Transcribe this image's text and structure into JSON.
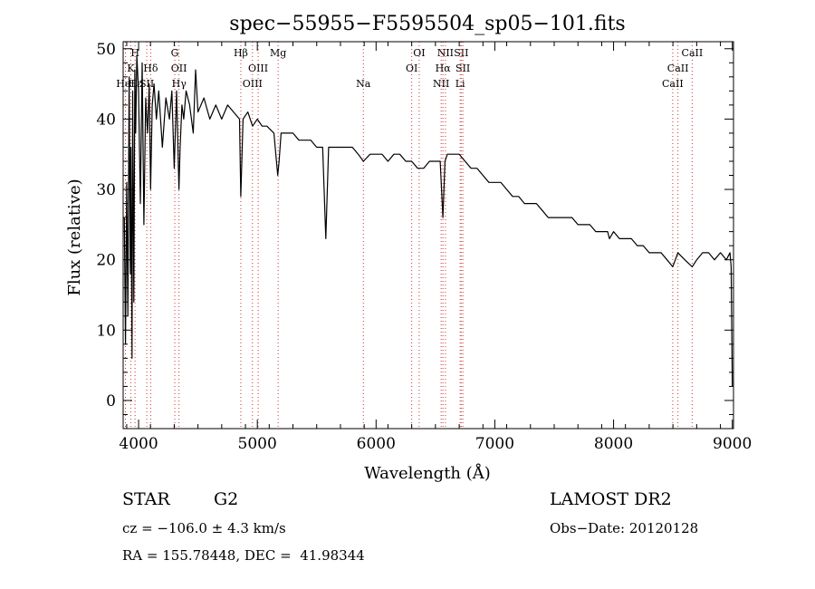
{
  "chart_data": {
    "type": "line",
    "title": "spec−55955−F5595504_sp05−101.fits",
    "xlabel": "Wavelength (Å)",
    "ylabel": "Flux (relative)",
    "xlim": [
      3870,
      9010
    ],
    "ylim": [
      -4,
      51
    ],
    "xticks": [
      4000,
      5000,
      6000,
      7000,
      8000,
      9000
    ],
    "xtick_labels": [
      "4000",
      "5000",
      "6000",
      "7000",
      "8000",
      "9000"
    ],
    "yticks": [
      0,
      10,
      20,
      30,
      40,
      50
    ],
    "ytick_labels": [
      "0",
      "10",
      "20",
      "30",
      "40",
      "50"
    ],
    "grid": false,
    "series": [
      {
        "x": [
          3880,
          3890,
          3900,
          3910,
          3920,
          3930,
          3935,
          3945,
          3950,
          3960,
          3968,
          3975,
          3985,
          4000,
          4015,
          4030,
          4045,
          4060,
          4075,
          4090,
          4101,
          4115,
          4130,
          4150,
          4170,
          4200,
          4230,
          4260,
          4280,
          4300,
          4320,
          4340,
          4350,
          4365,
          4380,
          4400,
          4430,
          4460,
          4480,
          4500,
          4550,
          4600,
          4650,
          4700,
          4750,
          4800,
          4850,
          4861,
          4880,
          4920,
          4960,
          5000,
          5040,
          5080,
          5140,
          5172,
          5183,
          5200,
          5250,
          5300,
          5350,
          5400,
          5450,
          5500,
          5550,
          5577,
          5600,
          5650,
          5700,
          5750,
          5800,
          5850,
          5893,
          5950,
          6000,
          6050,
          6100,
          6150,
          6200,
          6250,
          6300,
          6350,
          6400,
          6450,
          6500,
          6540,
          6563,
          6580,
          6600,
          6650,
          6700,
          6750,
          6800,
          6850,
          6900,
          6950,
          7000,
          7050,
          7100,
          7150,
          7200,
          7250,
          7300,
          7350,
          7400,
          7450,
          7500,
          7550,
          7600,
          7650,
          7700,
          7750,
          7800,
          7850,
          7900,
          7950,
          7965,
          8000,
          8050,
          8100,
          8150,
          8200,
          8250,
          8300,
          8350,
          8400,
          8450,
          8498,
          8542,
          8600,
          8662,
          8700,
          8750,
          8800,
          8850,
          8900,
          8950,
          8980,
          8990,
          9000
        ],
        "y": [
          26,
          8,
          31,
          12,
          46,
          18,
          36,
          6,
          44,
          14,
          47,
          38,
          49,
          44,
          28,
          48,
          25,
          43,
          38,
          45,
          30,
          42,
          45,
          40,
          44,
          36,
          43,
          40,
          44,
          33,
          44,
          30,
          36,
          42,
          40,
          44,
          42,
          38,
          47,
          41,
          43,
          40,
          42,
          40,
          42,
          41,
          40,
          29,
          40,
          41,
          39,
          40,
          39,
          39,
          38,
          32,
          34,
          38,
          38,
          38,
          37,
          37,
          37,
          36,
          36,
          23,
          36,
          36,
          36,
          36,
          36,
          35,
          34,
          35,
          35,
          35,
          34,
          35,
          35,
          34,
          34,
          33,
          33,
          34,
          34,
          34,
          26,
          34,
          35,
          35,
          35,
          34,
          33,
          33,
          32,
          31,
          31,
          31,
          30,
          29,
          29,
          28,
          28,
          28,
          27,
          26,
          26,
          26,
          26,
          26,
          25,
          25,
          25,
          24,
          24,
          24,
          23,
          24,
          23,
          23,
          23,
          22,
          22,
          21,
          21,
          21,
          20,
          19,
          21,
          20,
          19,
          20,
          21,
          21,
          20,
          21,
          20,
          21,
          19,
          2
        ]
      }
    ],
    "line_markers": {
      "left": [
        {
          "label": "H",
          "x": 3970,
          "row": 1
        },
        {
          "label": "K",
          "x": 3934,
          "row": 2
        },
        {
          "label": "Hε",
          "x": 3970,
          "row": 3
        },
        {
          "label": "HeI",
          "x": 3889,
          "row": 3
        },
        {
          "label": "SII",
          "x": 4069,
          "row": 3
        },
        {
          "label": "Hδ",
          "x": 4102,
          "row": 2
        },
        {
          "label": "G",
          "x": 4305,
          "row": 1
        },
        {
          "label": "OII",
          "x": 4340,
          "row": 2
        },
        {
          "label": "Hγ",
          "x": 4341,
          "row": 3
        },
        {
          "label": "Hβ",
          "x": 4861,
          "row": 1
        },
        {
          "label": "OIII",
          "x": 5007,
          "row": 2
        },
        {
          "label": "OIII",
          "x": 4959,
          "row": 3
        },
        {
          "label": "Mg",
          "x": 5175,
          "row": 1
        },
        {
          "label": "Na",
          "x": 5893,
          "row": 3
        },
        {
          "label": "OI",
          "x": 6363,
          "row": 1
        },
        {
          "label": "OI",
          "x": 6300,
          "row": 2
        },
        {
          "label": "NII",
          "x": 6584,
          "row": 1
        },
        {
          "label": "SII",
          "x": 6717,
          "row": 1
        },
        {
          "label": "Hα",
          "x": 6563,
          "row": 2
        },
        {
          "label": "SII",
          "x": 6731,
          "row": 2
        },
        {
          "label": "NII",
          "x": 6548,
          "row": 3
        },
        {
          "label": "Li",
          "x": 6708,
          "row": 3
        },
        {
          "label": "CaII",
          "x": 8662,
          "row": 1
        },
        {
          "label": "CaII",
          "x": 8542,
          "row": 2
        },
        {
          "label": "CaII",
          "x": 8498,
          "row": 3
        }
      ]
    }
  },
  "info": {
    "object_class": "STAR",
    "subclass": "G2",
    "survey": "LAMOST DR2",
    "velocity": "cz = −106.0 ± 4.3 km/s",
    "obs_date": "Obs−Date: 20120128",
    "coords": "RA = 155.78448, DEC =  41.98344"
  }
}
